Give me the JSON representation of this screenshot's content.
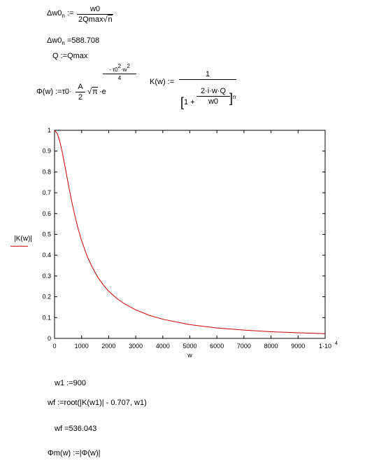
{
  "equations": {
    "dw0n_def_lhs": "Δw0",
    "dw0n_def_sub": "n",
    "dw0n_def_assign": ":=",
    "dw0n_def_num": "w0",
    "dw0n_def_den": "2Qmax",
    "dw0n_def_sqrt": "n",
    "dw0n_eval_lhs": "Δw0",
    "dw0n_eval_sub": "n",
    "dw0n_eval_eq": "=",
    "dw0n_eval_value": "588.708",
    "q_def": "Q :=Qmax",
    "phi_lhs": "Φ(w) :=τ0·",
    "phi_frac_num": "A",
    "phi_frac_den": "2",
    "phi_sqrt": "π",
    "phi_e": "·e",
    "phi_exp_num": "- τ0",
    "phi_exp_num_sup1": "2",
    "phi_exp_num_mid": "·w",
    "phi_exp_num_sup2": "2",
    "phi_exp_den": "4",
    "k_lhs": "K(w) :=",
    "k_num": "1",
    "k_den_pre": "1 +",
    "k_den_frac_num": "2·i·w·Q",
    "k_den_frac_den": "w0",
    "k_den_exp": "n",
    "w1_def": "w1 :=900",
    "wf_def": "wf :=root(|K(w1)| - 0.707, w1)",
    "wf_eval": "wf =536.043",
    "phim_def": "Φm(w) :=|Φ(w)|"
  },
  "chart_data": {
    "type": "line",
    "ylabel": "|K(w)|",
    "xlabel": "w",
    "xlim": [
      0,
      10000
    ],
    "ylim": [
      0,
      1
    ],
    "xticks": [
      "0",
      "1000",
      "2000",
      "3000",
      "4000",
      "5000",
      "6000",
      "7000",
      "8000",
      "9000",
      "1·10"
    ],
    "xtick_last_exp": "4",
    "yticks": [
      "0",
      "0.1",
      "0.2",
      "0.3",
      "0.4",
      "0.5",
      "0.6",
      "0.7",
      "0.8",
      "0.9",
      "1"
    ],
    "series": [
      {
        "color": "#cc0000",
        "x": [
          0,
          100,
          200,
          300,
          400,
          500,
          600,
          700,
          800,
          900,
          1000,
          1200,
          1400,
          1600,
          1800,
          2000,
          2300,
          2600,
          3000,
          3500,
          4000,
          5000,
          6000,
          7000,
          8000,
          9000,
          10000
        ],
        "y": [
          1.0,
          0.985,
          0.945,
          0.886,
          0.818,
          0.748,
          0.681,
          0.619,
          0.563,
          0.514,
          0.47,
          0.397,
          0.34,
          0.294,
          0.257,
          0.227,
          0.192,
          0.165,
          0.137,
          0.111,
          0.092,
          0.066,
          0.05,
          0.04,
          0.032,
          0.027,
          0.023
        ]
      }
    ]
  }
}
